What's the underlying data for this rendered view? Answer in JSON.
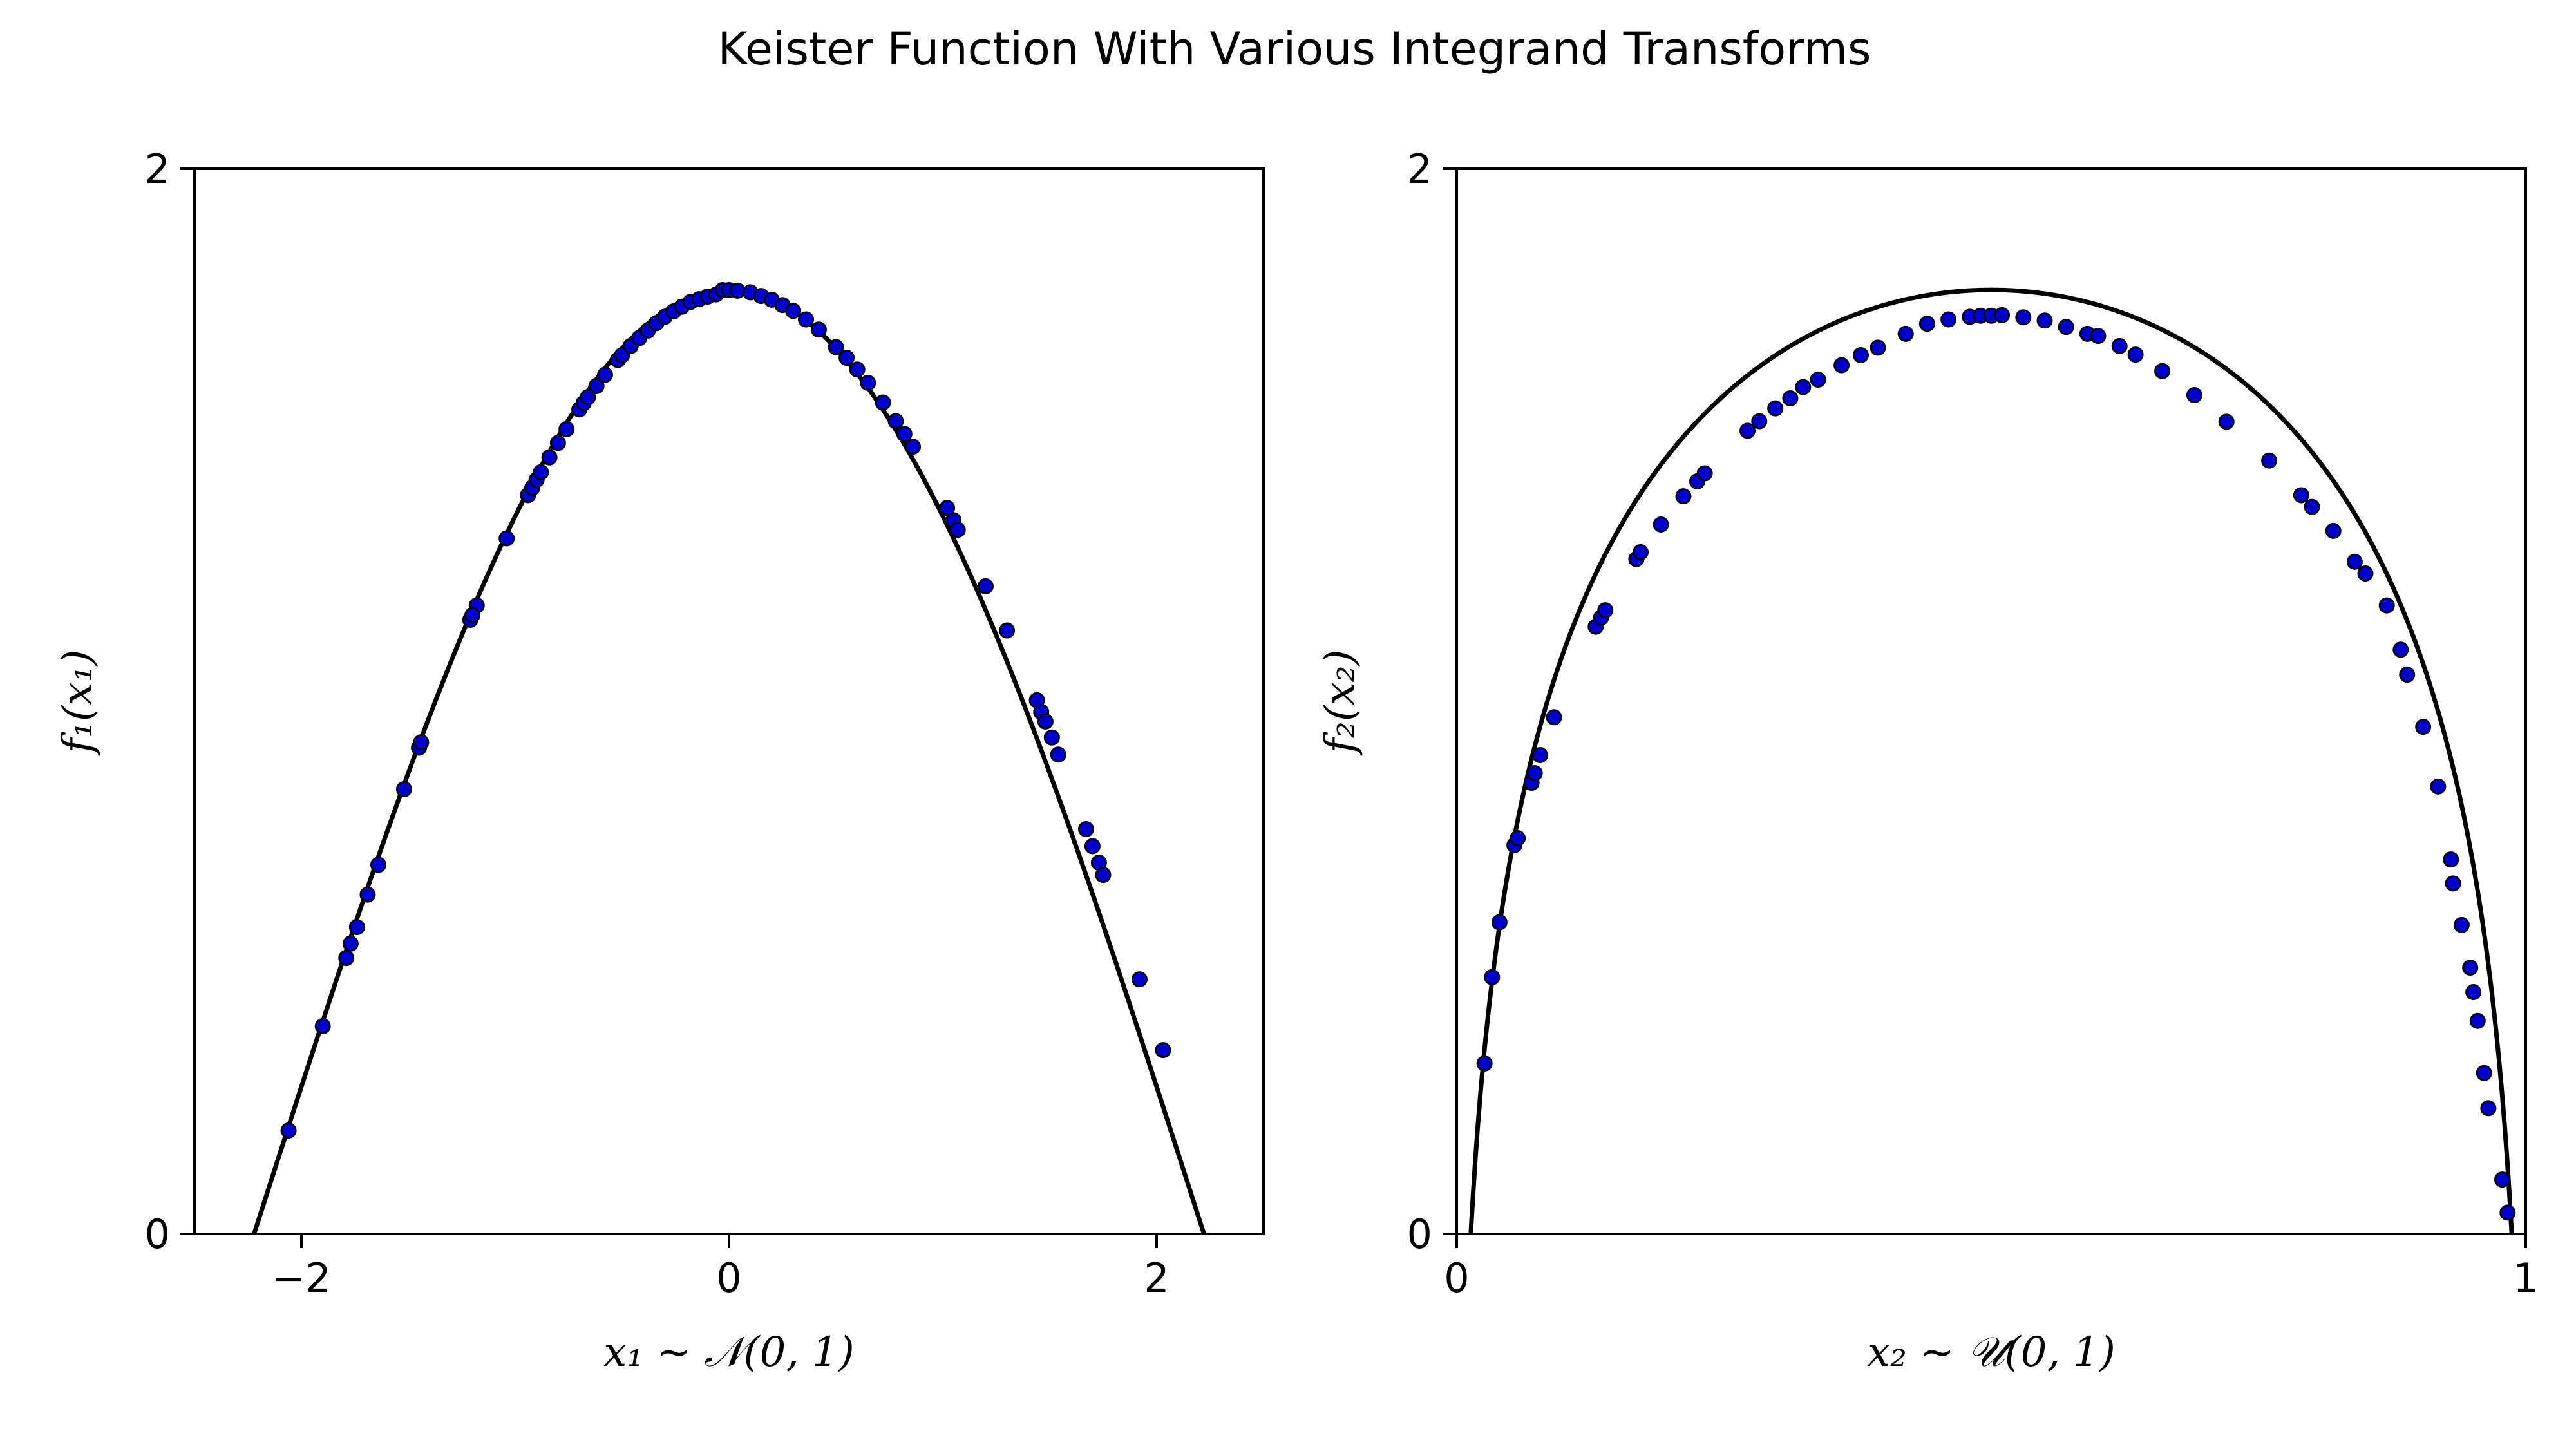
{
  "figure": {
    "title": "Keister Function With Various Integrand Transforms"
  },
  "chart_data": [
    {
      "type": "scatter",
      "title": "",
      "xlabel": "x₁ ~ 𝒩(0, 1)",
      "ylabel": "f₁(x₁)",
      "xlim": [
        -2.5,
        2.5
      ],
      "ylim": [
        0,
        2
      ],
      "xticks": [
        -2,
        0,
        2
      ],
      "xtick_labels": [
        "−2",
        "0",
        "2"
      ],
      "yticks": [
        0,
        2
      ],
      "ytick_labels": [
        "0",
        "2"
      ],
      "grid": false,
      "curve": {
        "function": "pi^0.5 * cos(|x| / sqrt(2))",
        "x_range": [
          -2.5,
          2.5
        ],
        "color": "#000000"
      },
      "points_color": "#0000cc",
      "points_x": [
        -2.06,
        -1.9,
        -1.79,
        -1.77,
        -1.74,
        -1.69,
        -1.64,
        -1.52,
        -1.45,
        -1.44,
        -1.21,
        -1.18,
        -1.2,
        -1.04,
        -0.94,
        -0.92,
        -0.9,
        -0.88,
        -0.84,
        -0.8,
        -0.76,
        -0.7,
        -0.68,
        -0.66,
        -0.62,
        -0.58,
        -0.52,
        -0.5,
        -0.46,
        -0.42,
        -0.38,
        -0.34,
        -0.3,
        -0.26,
        -0.22,
        -0.18,
        -0.14,
        -0.1,
        -0.06,
        -0.03,
        0.0,
        0.04,
        0.1,
        0.15,
        0.2,
        0.25,
        0.3,
        0.36,
        0.42,
        0.5,
        0.55,
        0.6,
        0.65,
        0.72,
        0.78,
        0.82,
        0.86,
        1.02,
        1.05,
        1.07,
        1.2,
        1.3,
        1.44,
        1.46,
        1.48,
        1.51,
        1.54,
        1.67,
        1.7,
        1.73,
        1.75,
        1.92,
        2.03
      ],
      "points_y": [
        0.194,
        0.39,
        0.518,
        0.545,
        0.576,
        0.637,
        0.693,
        0.835,
        0.913,
        0.923,
        1.153,
        1.18,
        1.162,
        1.306,
        1.387,
        1.401,
        1.416,
        1.43,
        1.458,
        1.485,
        1.511,
        1.548,
        1.56,
        1.571,
        1.592,
        1.613,
        1.641,
        1.65,
        1.667,
        1.682,
        1.696,
        1.71,
        1.722,
        1.732,
        1.741,
        1.75,
        1.755,
        1.76,
        1.764,
        1.772,
        1.772,
        1.771,
        1.768,
        1.761,
        1.754,
        1.744,
        1.733,
        1.717,
        1.698,
        1.665,
        1.645,
        1.623,
        1.598,
        1.561,
        1.526,
        1.502,
        1.478,
        1.363,
        1.34,
        1.322,
        1.216,
        1.133,
        1.002,
        0.98,
        0.962,
        0.932,
        0.9,
        0.76,
        0.728,
        0.697,
        0.674,
        0.478,
        0.345
      ]
    },
    {
      "type": "scatter",
      "title": "",
      "xlabel": "x₂ ~ 𝒰(0, 1)",
      "ylabel": "f₂(x₂)",
      "xlim": [
        0,
        1
      ],
      "ylim": [
        0,
        2
      ],
      "xticks": [
        0,
        1
      ],
      "xtick_labels": [
        "0",
        "1"
      ],
      "yticks": [
        0,
        2
      ],
      "ytick_labels": [
        "0",
        "2"
      ],
      "grid": false,
      "curve": {
        "function": "pi^0.5 * cos(|Phi^-1(x)| / sqrt(2))",
        "x_range": [
          0.0125,
          0.9875
        ],
        "color": "#000000"
      },
      "points_color": "#0000cc",
      "points_x": [
        0.026,
        0.033,
        0.04,
        0.054,
        0.057,
        0.07,
        0.073,
        0.078,
        0.091,
        0.13,
        0.135,
        0.139,
        0.168,
        0.172,
        0.191,
        0.212,
        0.225,
        0.232,
        0.272,
        0.283,
        0.298,
        0.312,
        0.324,
        0.338,
        0.36,
        0.378,
        0.394,
        0.42,
        0.44,
        0.46,
        0.48,
        0.49,
        0.5,
        0.51,
        0.53,
        0.55,
        0.57,
        0.59,
        0.6,
        0.62,
        0.635,
        0.66,
        0.69,
        0.72,
        0.76,
        0.79,
        0.8,
        0.82,
        0.84,
        0.85,
        0.87,
        0.883,
        0.889,
        0.904,
        0.918,
        0.93,
        0.932,
        0.94,
        0.948,
        0.951,
        0.955,
        0.961,
        0.965,
        0.978,
        0.983
      ],
      "points_y": [
        0.32,
        0.482,
        0.585,
        0.73,
        0.743,
        0.847,
        0.865,
        0.899,
        0.97,
        1.14,
        1.157,
        1.171,
        1.267,
        1.28,
        1.332,
        1.385,
        1.413,
        1.428,
        1.508,
        1.526,
        1.55,
        1.569,
        1.59,
        1.604,
        1.631,
        1.65,
        1.664,
        1.69,
        1.709,
        1.717,
        1.722,
        1.724,
        1.724,
        1.725,
        1.721,
        1.715,
        1.703,
        1.69,
        1.686,
        1.667,
        1.651,
        1.62,
        1.575,
        1.525,
        1.452,
        1.387,
        1.365,
        1.32,
        1.262,
        1.24,
        1.18,
        1.097,
        1.05,
        0.952,
        0.84,
        0.703,
        0.658,
        0.58,
        0.5,
        0.454,
        0.4,
        0.302,
        0.236,
        0.102,
        0.04
      ]
    }
  ]
}
